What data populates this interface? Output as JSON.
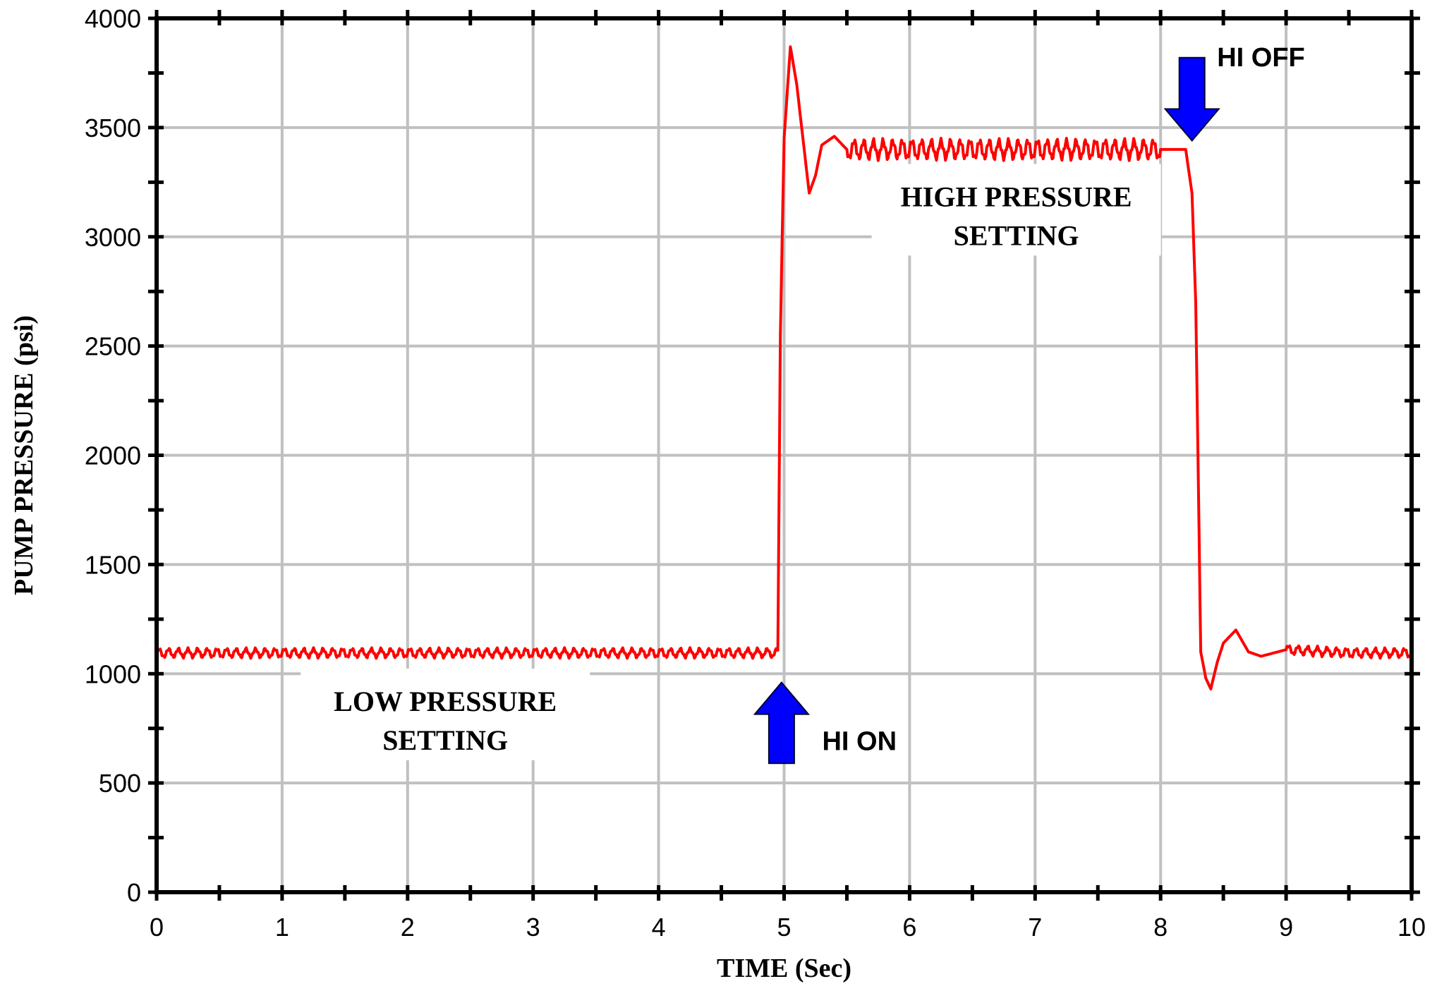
{
  "chart_data": {
    "type": "line",
    "title": "",
    "xlabel": "TIME (Sec)",
    "ylabel": "PUMP PRESSURE (psi)",
    "xlim": [
      0,
      10
    ],
    "ylim": [
      0,
      4000
    ],
    "x_ticks": [
      0,
      1,
      2,
      3,
      4,
      5,
      6,
      7,
      8,
      9,
      10
    ],
    "y_ticks": [
      0,
      500,
      1000,
      1500,
      2000,
      2500,
      3000,
      3500,
      4000
    ],
    "x_tick_labels": [
      "0",
      "1",
      "2",
      "3",
      "4",
      "5",
      "6",
      "7",
      "8",
      "9",
      "10"
    ],
    "y_tick_labels": [
      "0",
      "500",
      "1000",
      "1500",
      "2000",
      "2500",
      "3000",
      "3500",
      "4000"
    ],
    "grid": true,
    "series": [
      {
        "color": "#ff0000",
        "x": [
          0,
          0.5,
          1,
          1.5,
          2,
          2.5,
          3,
          3.5,
          4,
          4.5,
          4.95,
          4.97,
          5.0,
          5.05,
          5.1,
          5.15,
          5.2,
          5.25,
          5.3,
          5.4,
          5.5,
          6.0,
          6.5,
          7.0,
          7.5,
          8.0,
          8.2,
          8.25,
          8.28,
          8.32,
          8.36,
          8.4,
          8.45,
          8.5,
          8.6,
          8.7,
          8.8,
          9.0,
          9.5,
          10.0
        ],
        "y": [
          1095,
          1095,
          1095,
          1095,
          1095,
          1095,
          1095,
          1095,
          1095,
          1095,
          1095,
          2550,
          3450,
          3870,
          3700,
          3450,
          3200,
          3280,
          3420,
          3460,
          3400,
          3400,
          3400,
          3400,
          3400,
          3400,
          3400,
          3200,
          2700,
          1100,
          980,
          930,
          1050,
          1140,
          1200,
          1100,
          1080,
          1110,
          1095,
          1095
        ]
      }
    ],
    "annotations": [
      {
        "id": "low",
        "lines": [
          "LOW PRESSURE",
          "SETTING"
        ],
        "x": 2.3,
        "y": 830
      },
      {
        "id": "high",
        "lines": [
          "HIGH PRESSURE",
          "SETTING"
        ],
        "x": 6.85,
        "y": 3140
      },
      {
        "id": "hi_on",
        "text": "HI ON",
        "arrow": "up",
        "arrow_x": 4.98,
        "arrow_y_top": 960,
        "arrow_y_bottom": 590,
        "label_x": 5.6,
        "label_y": 650
      },
      {
        "id": "hi_off",
        "text": "HI OFF",
        "arrow": "down",
        "arrow_x": 8.25,
        "arrow_y_top": 3820,
        "arrow_y_bottom": 3440,
        "label_x": 8.8,
        "label_y": 3780
      }
    ],
    "arrow_color": "#0000ff"
  }
}
